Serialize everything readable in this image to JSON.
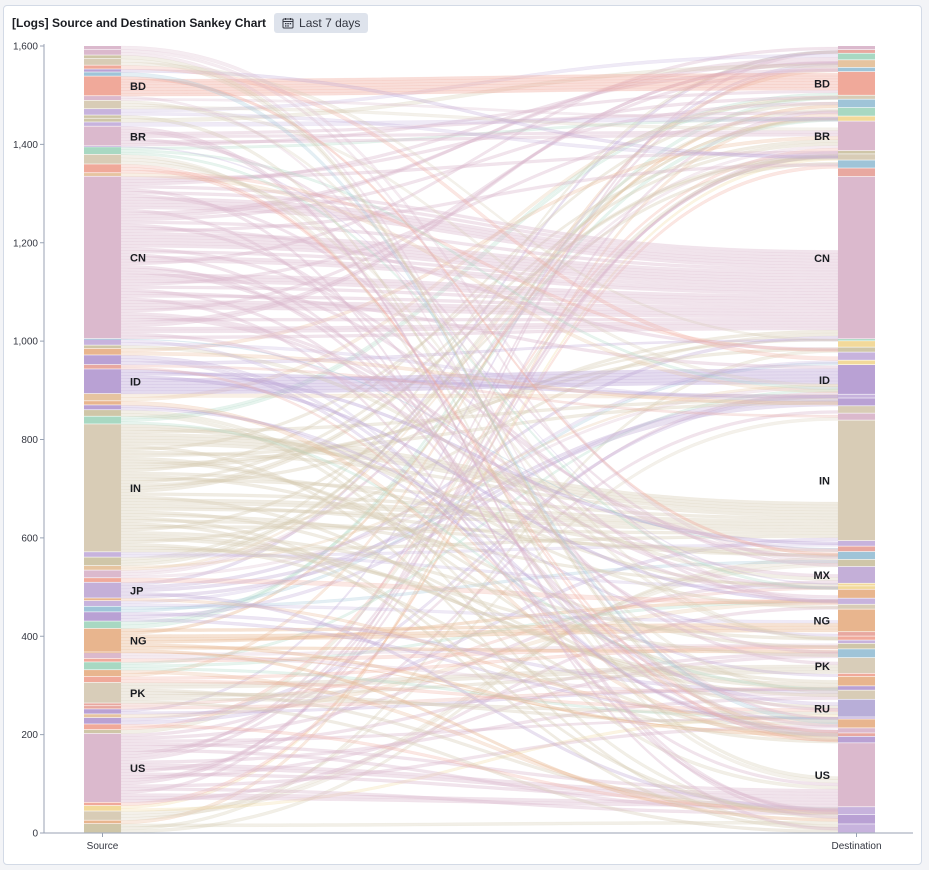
{
  "panel": {
    "title": "[Logs] Source and Destination Sankey Chart",
    "time_badge": "Last 7 days",
    "time_icon": "calendar-icon"
  },
  "chart_data": {
    "type": "sankey",
    "title": "[Logs] Source and Destination Sankey Chart",
    "ylim": [
      0,
      1600
    ],
    "yticks": [
      0,
      200,
      400,
      600,
      800,
      1000,
      1200,
      1400,
      1600
    ],
    "ytick_labels": [
      "0",
      "200",
      "400",
      "600",
      "800",
      "1,000",
      "1,200",
      "1,400",
      "1,600"
    ],
    "columns": [
      "Source",
      "Destination"
    ],
    "grid": false,
    "source_nodes": [
      {
        "label": "US",
        "value": 140,
        "color": "#dbb9cd"
      },
      {
        "label": "PK",
        "value": 42,
        "color": "#d8cdb9"
      },
      {
        "label": "NG",
        "value": 48,
        "color": "#e8b58e"
      },
      {
        "label": "JP",
        "value": 32,
        "color": "#c4afd8"
      },
      {
        "label": "IN",
        "value": 260,
        "color": "#d8ccb6"
      },
      {
        "label": "ID",
        "value": 50,
        "color": "#b9a1d4"
      },
      {
        "label": "CN",
        "value": 330,
        "color": "#dbb9cd"
      },
      {
        "label": "BR",
        "value": 40,
        "color": "#dbb9cd"
      },
      {
        "label": "BD",
        "value": 40,
        "color": "#f0a99a"
      }
    ],
    "destination_nodes": [
      {
        "label": "US",
        "value": 130,
        "color": "#dbb9cd"
      },
      {
        "label": "RU",
        "value": 36,
        "color": "#b8aed8"
      },
      {
        "label": "PK",
        "value": 32,
        "color": "#d8cdb9"
      },
      {
        "label": "NG",
        "value": 46,
        "color": "#e8b58e"
      },
      {
        "label": "MX",
        "value": 34,
        "color": "#c4afd8"
      },
      {
        "label": "IN",
        "value": 245,
        "color": "#d8ccb6"
      },
      {
        "label": "ID",
        "value": 60,
        "color": "#b9a1d4"
      },
      {
        "label": "CN",
        "value": 330,
        "color": "#dbb9cd"
      },
      {
        "label": "BR",
        "value": 60,
        "color": "#dbb9cd"
      },
      {
        "label": "BD",
        "value": 48,
        "color": "#f0a99a"
      }
    ],
    "palette": [
      "#dbb9cd",
      "#d8ccb6",
      "#f0a99a",
      "#b9a1d4",
      "#e8b58e",
      "#9fc4d8",
      "#f2d99a",
      "#a8d8c2",
      "#e6c4a0",
      "#c7b3dd",
      "#e8a8a0",
      "#cfc6a8"
    ]
  }
}
